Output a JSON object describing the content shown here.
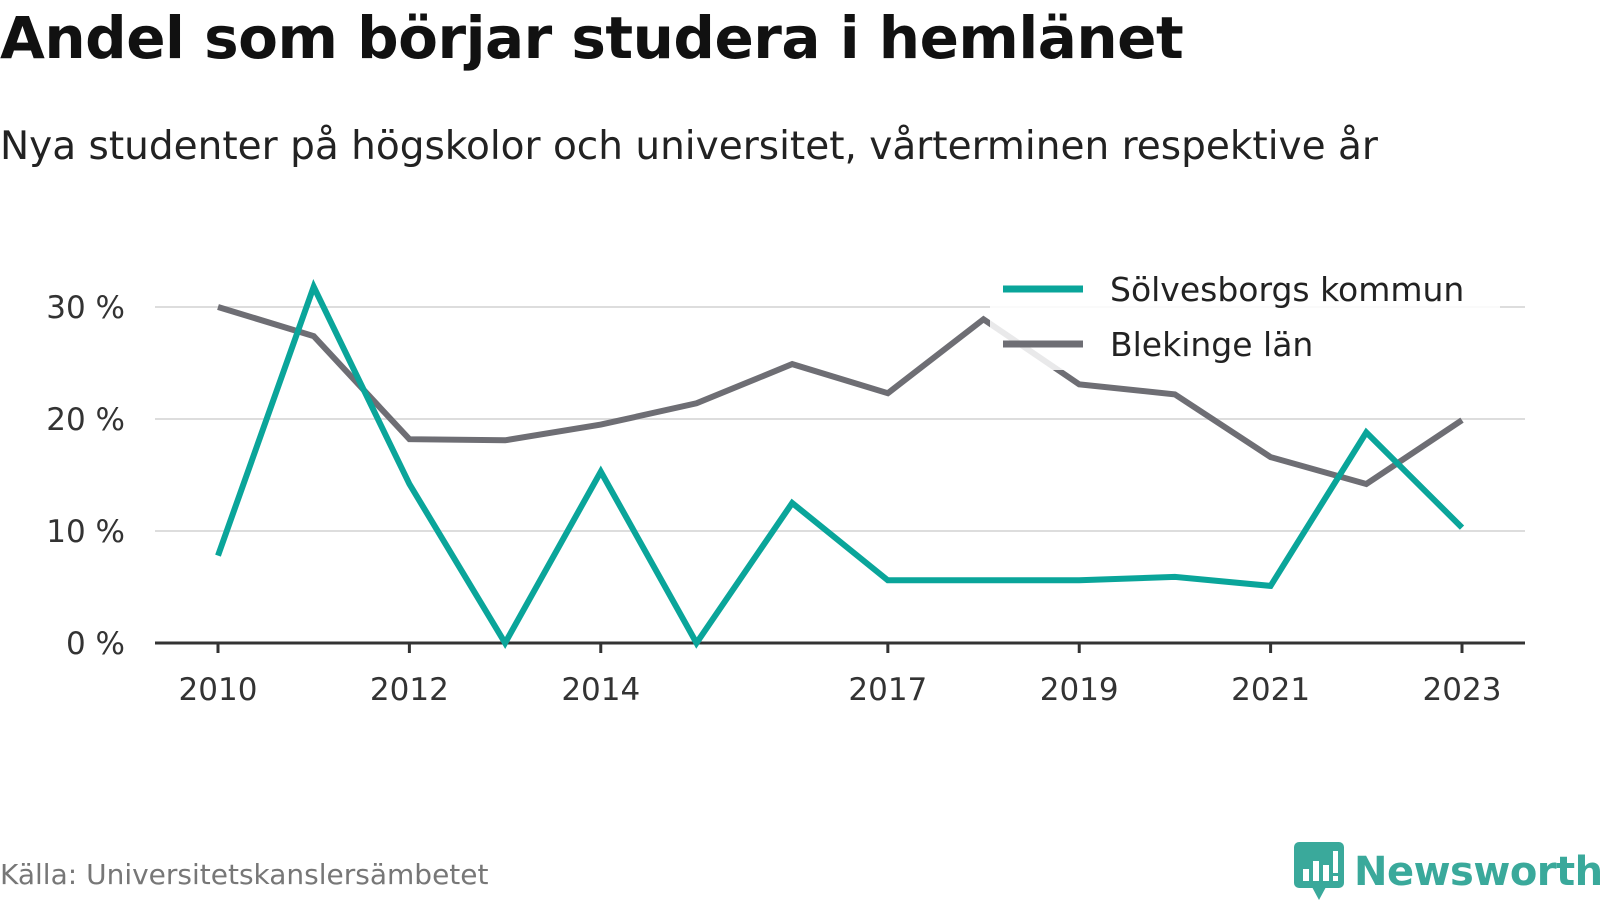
{
  "header": {
    "title": "Andel som börjar studera i hemlänet",
    "subtitle": "Nya studenter på högskolor och universitet, vårterminen respektive år"
  },
  "footer": {
    "source": "Källa: Universitetskanslersämbetet",
    "brand_name": "Newsworthy",
    "brand_icon": "bar-chart-speech-bubble-icon"
  },
  "colors": {
    "series_1": "#0aa59a",
    "series_2": "#6e6e74",
    "grid": "#dddddd",
    "axis": "#333333",
    "brand": "#3aa99b"
  },
  "chart_data": {
    "type": "line",
    "x": [
      2010,
      2011,
      2012,
      2013,
      2014,
      2015,
      2016,
      2017,
      2018,
      2019,
      2020,
      2021,
      2022,
      2023
    ],
    "x_tick_labels": [
      "2010",
      "2012",
      "2014",
      "2017",
      "2019",
      "2021",
      "2023"
    ],
    "y_ticks": [
      0,
      10,
      20,
      30
    ],
    "y_tick_labels": [
      "0 %",
      "10 %",
      "20 %",
      "30 %"
    ],
    "ylim": [
      0,
      30
    ],
    "grid": "horizontal",
    "legend_position": "top-right",
    "series": [
      {
        "name": "Sölvesborgs kommun",
        "color": "#0aa59a",
        "values": [
          7.8,
          31.8,
          14.2,
          0,
          15.3,
          0,
          12.5,
          5.6,
          5.6,
          5.6,
          5.9,
          5.1,
          18.8,
          10.3
        ]
      },
      {
        "name": "Blekinge län",
        "color": "#6e6e74",
        "values": [
          30.0,
          27.4,
          18.2,
          18.1,
          19.5,
          21.4,
          24.9,
          22.3,
          28.9,
          23.1,
          22.2,
          16.6,
          14.2,
          19.9
        ]
      }
    ]
  }
}
